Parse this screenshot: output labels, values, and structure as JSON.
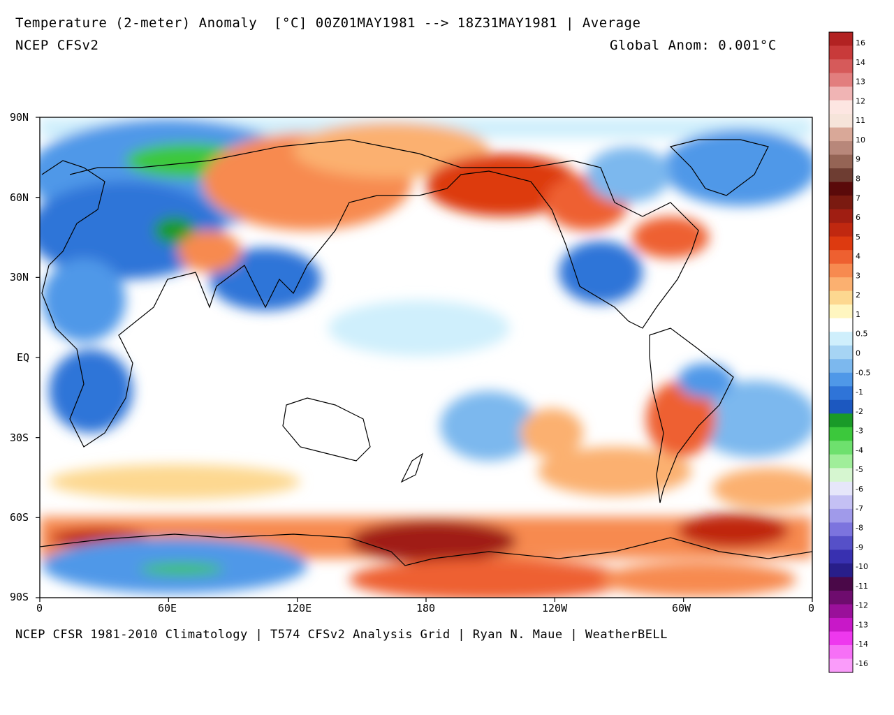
{
  "header": {
    "title": "Temperature (2-meter) Anomaly  [°C] 00Z01MAY1981 --> 18Z31MAY1981 | Average",
    "subtitle": "NCEP CFSv2",
    "global_anom": "Global Anom: 0.001°C"
  },
  "footer": {
    "credits": "NCEP CFSR 1981-2010 Climatology | T574 CFSv2 Analysis Grid | Ryan N. Maue | WeatherBELL"
  },
  "map": {
    "lat_labels": [
      "90N",
      "60N",
      "30N",
      "EQ",
      "30S",
      "60S",
      "90S"
    ],
    "lon_labels": [
      "0",
      "60E",
      "120E",
      "180",
      "120W",
      "60W",
      "0"
    ]
  },
  "legend": {
    "levels": [
      "16",
      "14",
      "13",
      "12",
      "11",
      "10",
      "9",
      "8",
      "7",
      "6",
      "5",
      "4",
      "3",
      "2",
      "1",
      "0.5",
      "0",
      "-0.5",
      "-1",
      "-2",
      "-3",
      "-4",
      "-5",
      "-6",
      "-7",
      "-8",
      "-9",
      "-10",
      "-11",
      "-12",
      "-13",
      "-14",
      "-16"
    ],
    "colors": [
      "#b22222",
      "#c83a3a",
      "#d65a5a",
      "#e27e7e",
      "#f0b4b4",
      "#fde6e2",
      "#f6e4da",
      "#d9a898",
      "#b8877a",
      "#956455",
      "#6e3d32",
      "#5a0a0a",
      "#7a1a10",
      "#a01e12",
      "#c02810",
      "#dd3a10",
      "#ee6030",
      "#f78a50",
      "#fbb070",
      "#fdd890",
      "#fff6c0",
      "#ffffff",
      "#cfeffc",
      "#a6d4f4",
      "#7cb8ee",
      "#4f98e8",
      "#2f74d8",
      "#1c58c0",
      "#1a9a28",
      "#3cc83c",
      "#6ee06e",
      "#a0ee9a",
      "#d6f6d0",
      "#e6e6fa",
      "#c4c0f4",
      "#a09aea",
      "#7c74de",
      "#5650c8",
      "#3830b0",
      "#281e8a",
      "#4a0848",
      "#6e0c6e",
      "#9a109a",
      "#c818c8",
      "#ee38ee",
      "#f670f6",
      "#fa9cfa"
    ]
  }
}
